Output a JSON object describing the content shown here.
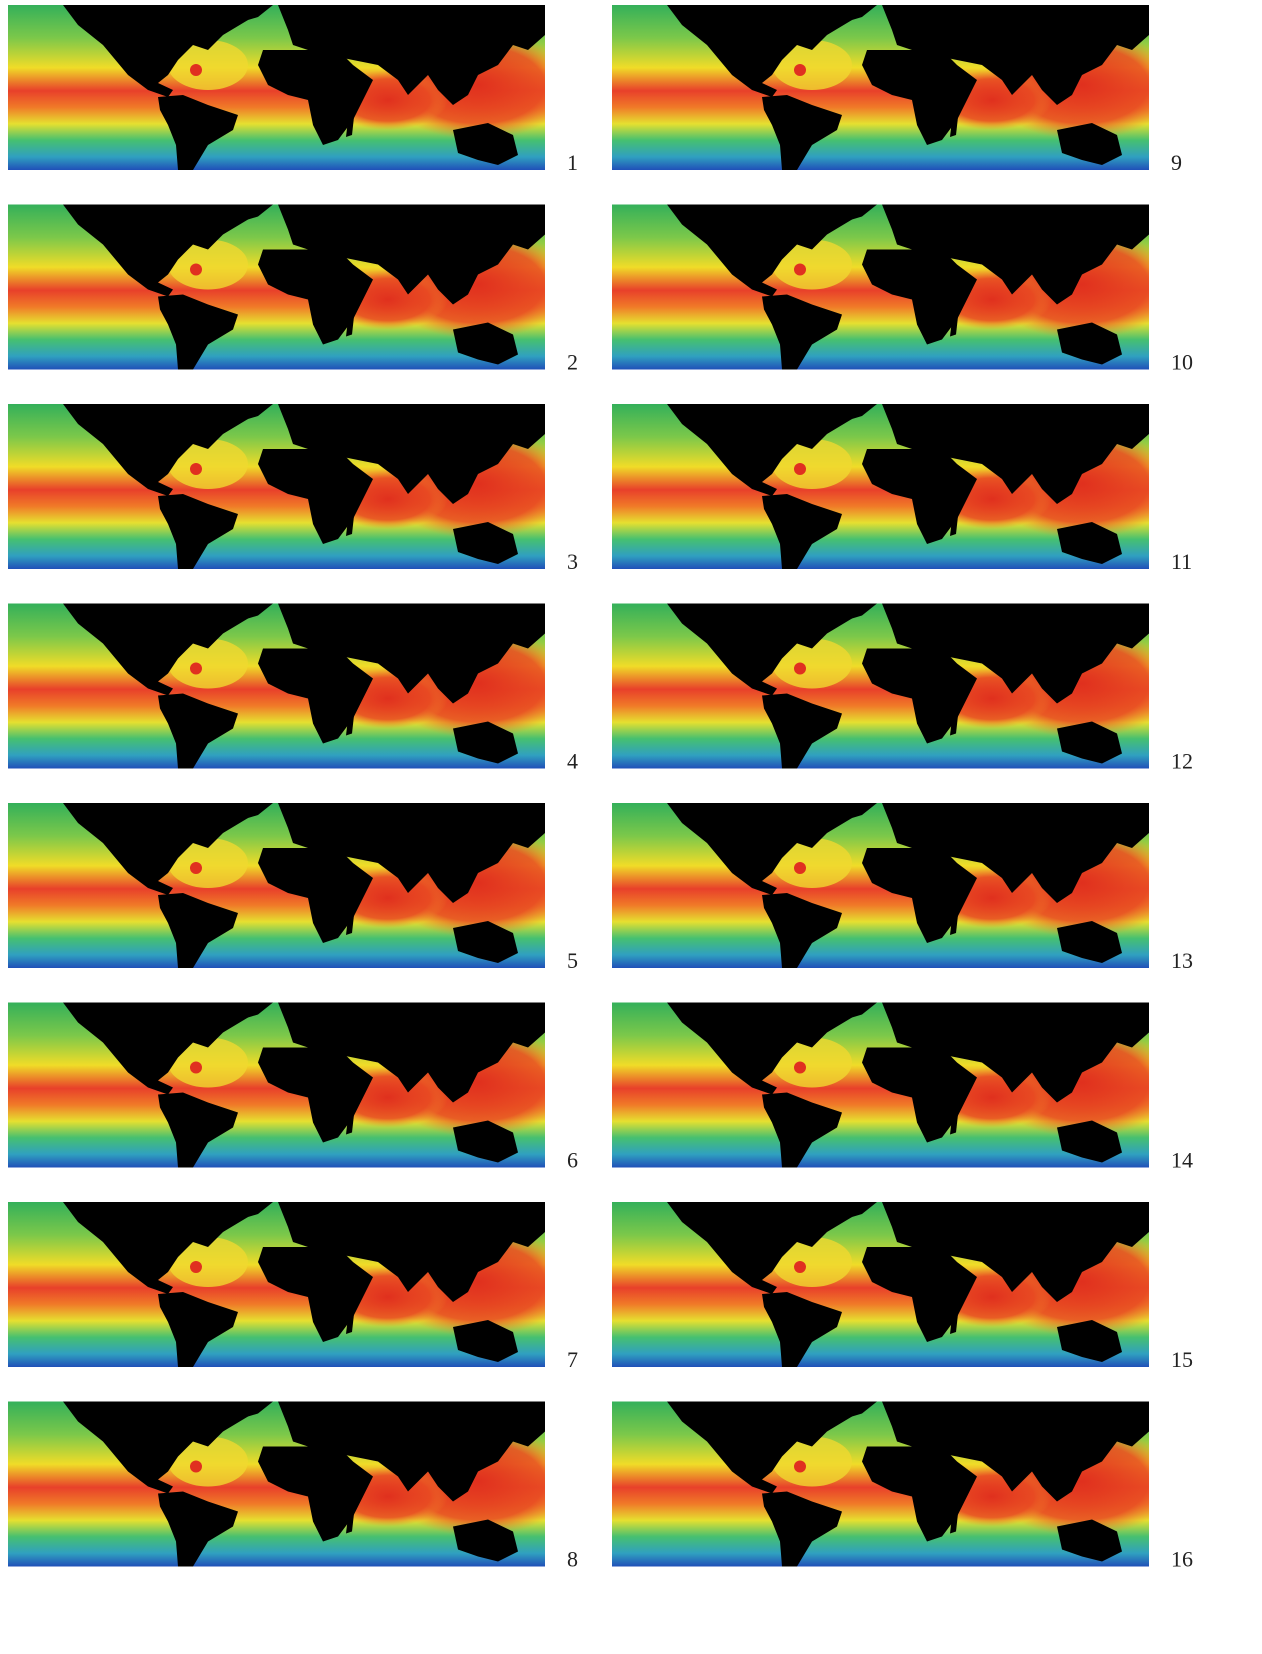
{
  "panels": [
    {
      "label": "1"
    },
    {
      "label": "2"
    },
    {
      "label": "3"
    },
    {
      "label": "4"
    },
    {
      "label": "5"
    },
    {
      "label": "6"
    },
    {
      "label": "7"
    },
    {
      "label": "8"
    },
    {
      "label": "9"
    },
    {
      "label": "10"
    },
    {
      "label": "11"
    },
    {
      "label": "12"
    },
    {
      "label": "13"
    },
    {
      "label": "14"
    },
    {
      "label": "15"
    },
    {
      "label": "16"
    }
  ]
}
